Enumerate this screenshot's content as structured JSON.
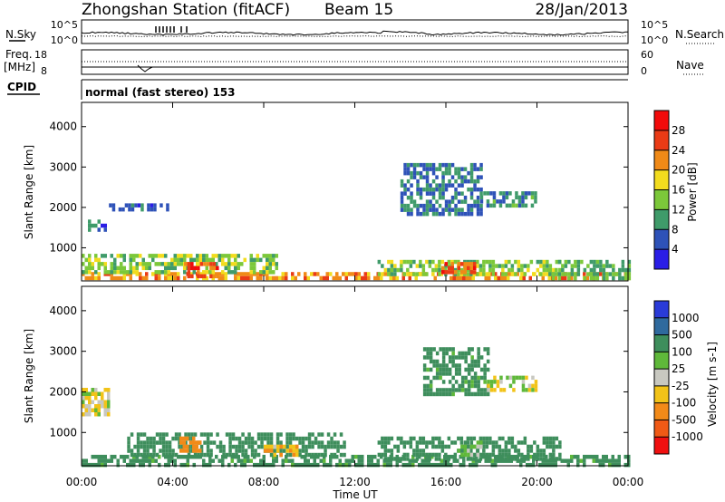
{
  "header": {
    "station": "Zhongshan Station (fitACF)",
    "beam": "Beam 15",
    "date": "28/Jan/2013"
  },
  "noise_panel": {
    "left_label": "N.Sky",
    "right_label": "N.Search",
    "left_ticks": [
      "10^5",
      "10^0"
    ],
    "right_ticks": [
      "10^5",
      "10^0"
    ]
  },
  "freq_panel": {
    "left_label_line1": "Freq.",
    "left_label_line2": "[MHz]",
    "right_label": "Nave",
    "left_ticks": [
      "18",
      "8"
    ],
    "right_ticks": [
      "60",
      "0"
    ]
  },
  "cpid_panel": {
    "label": "CPID",
    "text": "normal (fast stereo) 153"
  },
  "x_axis": {
    "label": "Time UT",
    "ticks": [
      "00:00",
      "04:00",
      "08:00",
      "12:00",
      "16:00",
      "20:00",
      "00:00"
    ]
  },
  "power_panel": {
    "ylabel": "Slant Range [km]",
    "yticks": [
      "1000",
      "2000",
      "3000",
      "4000"
    ],
    "colorbar_label": "Power [dB]",
    "colorbar_ticks": [
      "4",
      "8",
      "12",
      "16",
      "20",
      "24",
      "28"
    ],
    "colors": [
      "#2a1ee6",
      "#2e52b8",
      "#3f9b6a",
      "#7cc83a",
      "#f2dc1e",
      "#f08a17",
      "#ea3b16",
      "#f20b0b"
    ]
  },
  "velocity_panel": {
    "ylabel": "Slant Range [km]",
    "yticks": [
      "1000",
      "2000",
      "3000",
      "4000"
    ],
    "colorbar_label": "Velocity [m s-1]",
    "colorbar_ticks": [
      "1000",
      "500",
      "100",
      "25",
      "-25",
      "-100",
      "-500",
      "-1000"
    ],
    "colors": [
      "#2a3bd8",
      "#2f6a9e",
      "#3e8e5c",
      "#5fb83a",
      "#c8c8c0",
      "#f2c318",
      "#f28a18",
      "#f05a16",
      "#f01010"
    ]
  },
  "chart_data": [
    {
      "type": "heatmap",
      "title": "Power",
      "xlabel": "Time UT",
      "ylabel": "Slant Range [km]",
      "xlim": [
        "00:00",
        "24:00"
      ],
      "ylim": [
        180,
        4600
      ],
      "colorbar": {
        "label": "Power [dB]",
        "range": [
          0,
          30
        ],
        "ticks": [
          4,
          8,
          12,
          16,
          20,
          24,
          28
        ]
      },
      "regions": [
        {
          "t0": 0.0,
          "t1": 24.0,
          "r0": 200,
          "r1": 400,
          "value": 22
        },
        {
          "t0": 0.0,
          "t1": 8.5,
          "r0": 400,
          "r1": 850,
          "value": 14
        },
        {
          "t0": 4.5,
          "t1": 6.0,
          "r0": 300,
          "r1": 650,
          "value": 26
        },
        {
          "t0": 0.0,
          "t1": 1.0,
          "r0": 1400,
          "r1": 1700,
          "value": 7
        },
        {
          "t0": 1.2,
          "t1": 3.8,
          "r0": 1900,
          "r1": 2100,
          "value": 6
        },
        {
          "t0": 14.0,
          "t1": 17.5,
          "r0": 1800,
          "r1": 3100,
          "value": 8
        },
        {
          "t0": 17.5,
          "t1": 20.0,
          "r0": 2000,
          "r1": 2400,
          "value": 9
        },
        {
          "t0": 13.0,
          "t1": 21.0,
          "r0": 350,
          "r1": 700,
          "value": 14
        },
        {
          "t0": 15.8,
          "t1": 17.2,
          "r0": 350,
          "r1": 650,
          "value": 25
        },
        {
          "t0": 20.5,
          "t1": 24.0,
          "r0": 250,
          "r1": 700,
          "value": 12
        }
      ]
    },
    {
      "type": "heatmap",
      "title": "Velocity",
      "xlabel": "Time UT",
      "ylabel": "Slant Range [km]",
      "xlim": [
        "00:00",
        "24:00"
      ],
      "ylim": [
        180,
        4600
      ],
      "colorbar": {
        "label": "Velocity [m s-1]",
        "range": [
          -1000,
          1000
        ],
        "ticks": [
          1000,
          500,
          100,
          25,
          -25,
          -100,
          -500,
          -1000
        ]
      },
      "regions": [
        {
          "t0": 0.0,
          "t1": 24.0,
          "r0": 200,
          "r1": 450,
          "value": 150
        },
        {
          "t0": 2.0,
          "t1": 11.5,
          "r0": 450,
          "r1": 1000,
          "value": 180
        },
        {
          "t0": 4.3,
          "t1": 5.2,
          "r0": 500,
          "r1": 900,
          "value": -200
        },
        {
          "t0": 8.0,
          "t1": 9.5,
          "r0": 450,
          "r1": 700,
          "value": -80
        },
        {
          "t0": 0.0,
          "t1": 1.2,
          "r0": 1400,
          "r1": 2100,
          "value": 0
        },
        {
          "t0": 15.0,
          "t1": 17.8,
          "r0": 1900,
          "r1": 3100,
          "value": 150
        },
        {
          "t0": 17.8,
          "t1": 20.0,
          "r0": 2000,
          "r1": 2400,
          "value": 0
        },
        {
          "t0": 13.0,
          "t1": 21.0,
          "r0": 300,
          "r1": 900,
          "value": 180
        },
        {
          "t0": 16.5,
          "t1": 17.5,
          "r0": 450,
          "r1": 800,
          "value": 60
        }
      ]
    }
  ]
}
